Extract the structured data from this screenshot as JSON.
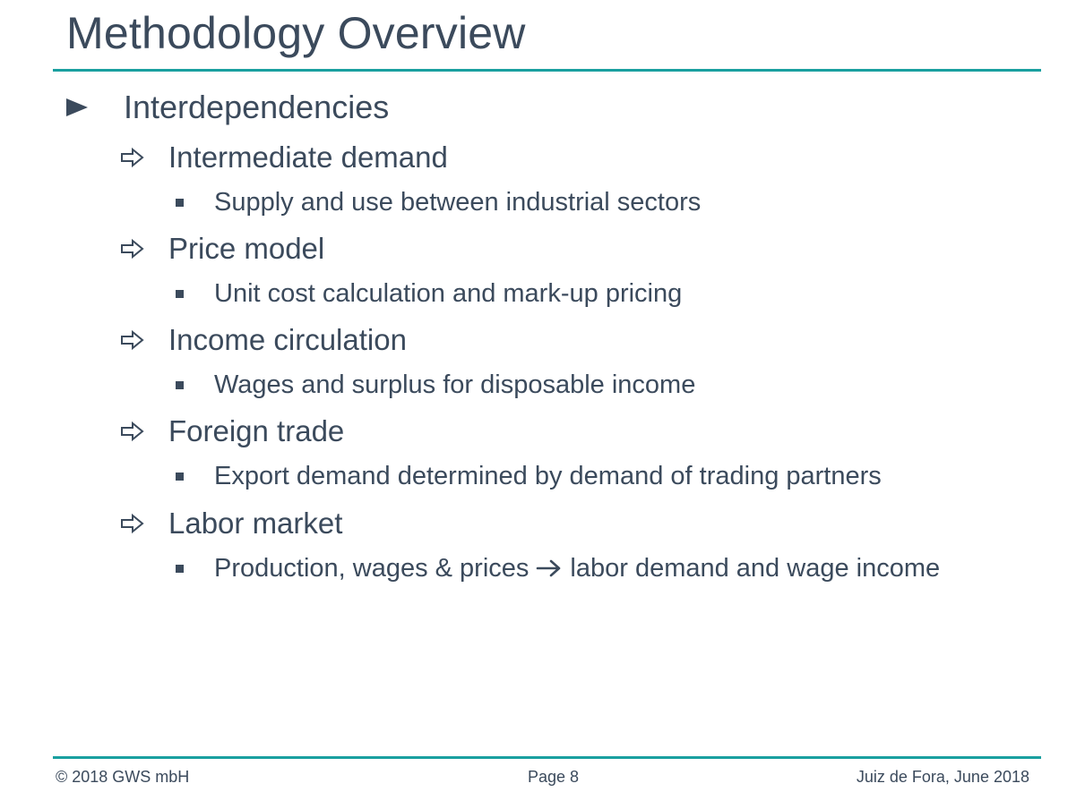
{
  "slide": {
    "title": "Methodology Overview",
    "heading": "Interdependencies",
    "items": [
      {
        "label": "Intermediate demand",
        "detail": "Supply and use between industrial sectors"
      },
      {
        "label": "Price model",
        "detail": "Unit cost calculation and mark-up pricing"
      },
      {
        "label": "Income circulation",
        "detail": "Wages and surplus for disposable income"
      },
      {
        "label": "Foreign trade",
        "detail": "Export demand determined by demand of trading partners"
      },
      {
        "label": "Labor market",
        "detail_before": "Production, wages & prices",
        "detail_after": "labor demand and wage income"
      }
    ]
  },
  "footer": {
    "copyright": "© 2018 GWS mbH",
    "page": "Page 8",
    "place_date": "Juiz de Fora, June 2018"
  },
  "colors": {
    "text": "#3b4a5c",
    "accent_rule": "#1aa0a0"
  },
  "icons": {
    "level1_bullet": "triangle-right-icon",
    "level2_bullet": "outline-arrow-right-icon",
    "level3_bullet": "square-bullet-icon",
    "inline_arrow": "arrow-right-icon"
  }
}
